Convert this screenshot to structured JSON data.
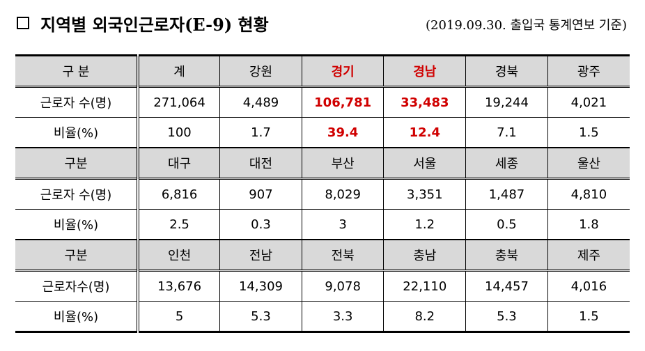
{
  "title": "지역별 외국인근로자(E-9) 현황",
  "note": "(2019.09.30. 출입국 통계연보 기준)",
  "table": {
    "blocks": [
      {
        "header": [
          "구 분",
          "계",
          "강원",
          "경기",
          "경남",
          "경북",
          "광주"
        ],
        "rows": [
          [
            "근로자 수(명)",
            "271,064",
            "4,489",
            "106,781",
            "33,483",
            "19,244",
            "4,021"
          ],
          [
            "비율(%)",
            "100",
            "1.7",
            "39.4",
            "12.4",
            "7.1",
            "1.5"
          ]
        ]
      },
      {
        "header": [
          "구분",
          "대구",
          "대전",
          "부산",
          "서울",
          "세종",
          "울산"
        ],
        "rows": [
          [
            "근로자 수(명)",
            "6,816",
            "907",
            "8,029",
            "3,351",
            "1,487",
            "4,810"
          ],
          [
            "비율(%)",
            "2.5",
            "0.3",
            "3",
            "1.2",
            "0.5",
            "1.8"
          ]
        ]
      },
      {
        "header": [
          "구분",
          "인천",
          "전남",
          "전북",
          "충남",
          "충북",
          "제주"
        ],
        "rows": [
          [
            "근로자수(명)",
            "13,676",
            "14,309",
            "9,078",
            "22,110",
            "14,457",
            "4,016"
          ],
          [
            "비율(%)",
            "5",
            "5.3",
            "3.3",
            "8.2",
            "5.3",
            "1.5"
          ]
        ]
      }
    ]
  }
}
